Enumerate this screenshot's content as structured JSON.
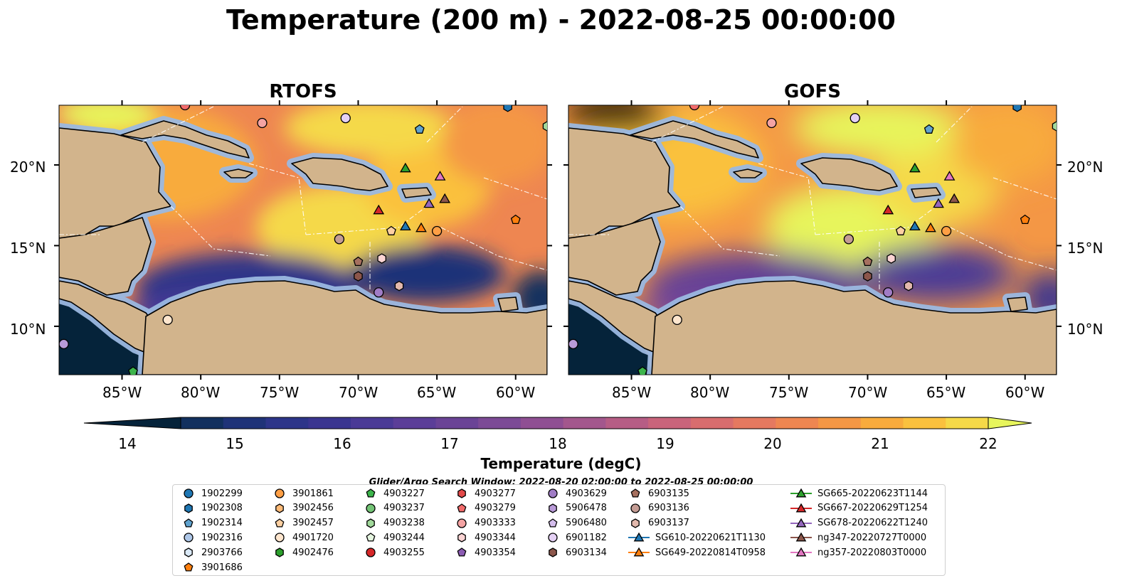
{
  "title": "Temperature (200 m) - 2022-08-25 00:00:00",
  "panels": [
    {
      "title": "RTOFS"
    },
    {
      "title": "GOFS"
    }
  ],
  "map_extent": {
    "lon_min": -89,
    "lon_max": -58,
    "lat_min": 7,
    "lat_max": 23.7
  },
  "lon_ticks": [
    "85°W",
    "80°W",
    "75°W",
    "70°W",
    "65°W",
    "60°W"
  ],
  "lat_ticks": [
    "20°N",
    "15°N",
    "10°N"
  ],
  "colorbar": {
    "label": "Temperature (degC)",
    "ticks": [
      "14",
      "15",
      "16",
      "17",
      "18",
      "19",
      "20",
      "21",
      "22"
    ],
    "vmin": 14,
    "vmax": 22,
    "extend": "both",
    "colors": [
      "#05233a",
      "#12305e",
      "#1f3378",
      "#2d3589",
      "#3a3590",
      "#4a3a96",
      "#5b3e98",
      "#6a4396",
      "#7c4a96",
      "#8f4f93",
      "#a3578d",
      "#b65d85",
      "#c9647b",
      "#d86d6e",
      "#e57960",
      "#ee8651",
      "#f49745",
      "#f8ab3c",
      "#fac13e",
      "#f5d948",
      "#e7f55c"
    ]
  },
  "search_window": "Glider/Argo Search Window: 2022-08-20 02:00:00 to 2022-08-25 00:00:00",
  "legend": {
    "columns": [
      [
        {
          "label": "1902299",
          "shape": "circle",
          "color": "#1f77b4"
        },
        {
          "label": "1902308",
          "shape": "hexagon",
          "color": "#1f77b4"
        },
        {
          "label": "1902314",
          "shape": "pentagon",
          "color": "#5fa2ce"
        },
        {
          "label": "1902316",
          "shape": "circle",
          "color": "#aec7e8"
        },
        {
          "label": "2903766",
          "shape": "hexagon",
          "color": "#dbeaf8"
        },
        {
          "label": "3901686",
          "shape": "pentagon",
          "color": "#ff7f0e"
        }
      ],
      [
        {
          "label": "3901861",
          "shape": "circle",
          "color": "#ff9f45"
        },
        {
          "label": "3902456",
          "shape": "hexagon",
          "color": "#ffbb78"
        },
        {
          "label": "3902457",
          "shape": "pentagon",
          "color": "#fdd0a2"
        },
        {
          "label": "4901720",
          "shape": "circle",
          "color": "#fee6ce"
        },
        {
          "label": "4902476",
          "shape": "hexagon",
          "color": "#2ca02c"
        }
      ],
      [
        {
          "label": "4903227",
          "shape": "pentagon",
          "color": "#3cb44b"
        },
        {
          "label": "4903237",
          "shape": "circle",
          "color": "#74c476"
        },
        {
          "label": "4903238",
          "shape": "hexagon",
          "color": "#a1d99b"
        },
        {
          "label": "4903244",
          "shape": "pentagon",
          "color": "#e5f5e0"
        },
        {
          "label": "4903255",
          "shape": "circle",
          "color": "#d62728"
        }
      ],
      [
        {
          "label": "4903277",
          "shape": "hexagon",
          "color": "#e34a4a"
        },
        {
          "label": "4903279",
          "shape": "pentagon",
          "color": "#f26b6b"
        },
        {
          "label": "4903333",
          "shape": "circle",
          "color": "#f4a3a3"
        },
        {
          "label": "4903344",
          "shape": "hexagon",
          "color": "#fbd4d4"
        },
        {
          "label": "4903354",
          "shape": "pentagon",
          "color": "#8c5cb3"
        }
      ],
      [
        {
          "label": "4903629",
          "shape": "circle",
          "color": "#a07cc5"
        },
        {
          "label": "5906478",
          "shape": "hexagon",
          "color": "#b99ad8"
        },
        {
          "label": "5906480",
          "shape": "pentagon",
          "color": "#d4bdec"
        },
        {
          "label": "6901182",
          "shape": "circle",
          "color": "#e5d1f5"
        },
        {
          "label": "6903134",
          "shape": "hexagon",
          "color": "#8c564b"
        }
      ],
      [
        {
          "label": "6903135",
          "shape": "pentagon",
          "color": "#a6705f"
        },
        {
          "label": "6903136",
          "shape": "circle",
          "color": "#c49c94"
        },
        {
          "label": "6903137",
          "shape": "hexagon",
          "color": "#e3b9ad"
        },
        {
          "label": "SG610-20220621T1130",
          "shape": "triangle",
          "color": "#1f77b4",
          "line": true
        },
        {
          "label": "SG649-20220814T0958",
          "shape": "triangle",
          "color": "#ff7f0e",
          "line": true
        }
      ],
      [
        {
          "label": "SG665-20220623T1144",
          "shape": "triangle",
          "color": "#2ca02c",
          "line": true
        },
        {
          "label": "SG667-20220629T1254",
          "shape": "triangle",
          "color": "#d62728",
          "line": true
        },
        {
          "label": "SG678-20220622T1240",
          "shape": "triangle",
          "color": "#9467bd",
          "line": true
        },
        {
          "label": "ng347-20220727T0000",
          "shape": "triangle",
          "color": "#8c564b",
          "line": true
        },
        {
          "label": "ng357-20220803T0000",
          "shape": "triangle",
          "color": "#e377c2",
          "line": true
        }
      ]
    ]
  },
  "markers": [
    {
      "lon": -76.1,
      "lat": 22.6,
      "shape": "circle",
      "color": "#f4a3a3"
    },
    {
      "lon": -70.8,
      "lat": 22.9,
      "shape": "circle",
      "color": "#e5d1f5"
    },
    {
      "lon": -66.1,
      "lat": 22.2,
      "shape": "pentagon",
      "color": "#5fa2ce"
    },
    {
      "lon": -60.5,
      "lat": 23.6,
      "shape": "hexagon",
      "color": "#1f77b4"
    },
    {
      "lon": -81.0,
      "lat": 23.7,
      "shape": "circle",
      "color": "#f26b6b"
    },
    {
      "lon": -58.0,
      "lat": 22.4,
      "shape": "hexagon",
      "color": "#a1d99b"
    },
    {
      "lon": -67.0,
      "lat": 19.8,
      "shape": "triangle",
      "color": "#2ca02c"
    },
    {
      "lon": -64.8,
      "lat": 19.3,
      "shape": "triangle",
      "color": "#e377c2"
    },
    {
      "lon": -65.5,
      "lat": 17.6,
      "shape": "triangle",
      "color": "#9467bd"
    },
    {
      "lon": -64.5,
      "lat": 17.9,
      "shape": "triangle",
      "color": "#8c564b"
    },
    {
      "lon": -68.7,
      "lat": 17.2,
      "shape": "triangle",
      "color": "#d62728"
    },
    {
      "lon": -67.0,
      "lat": 16.2,
      "shape": "triangle",
      "color": "#1f77b4"
    },
    {
      "lon": -66.0,
      "lat": 16.1,
      "shape": "triangle",
      "color": "#ff7f0e"
    },
    {
      "lon": -67.9,
      "lat": 15.9,
      "shape": "pentagon",
      "color": "#fdd0a2"
    },
    {
      "lon": -65.0,
      "lat": 15.9,
      "shape": "circle",
      "color": "#ff9f45"
    },
    {
      "lon": -71.2,
      "lat": 15.4,
      "shape": "circle",
      "color": "#c49c94"
    },
    {
      "lon": -60.0,
      "lat": 16.6,
      "shape": "pentagon",
      "color": "#ff7f0e"
    },
    {
      "lon": -70.0,
      "lat": 14.0,
      "shape": "pentagon",
      "color": "#a6705f"
    },
    {
      "lon": -68.5,
      "lat": 14.2,
      "shape": "hexagon",
      "color": "#fbd4d4"
    },
    {
      "lon": -70.0,
      "lat": 13.1,
      "shape": "hexagon",
      "color": "#8c564b"
    },
    {
      "lon": -68.7,
      "lat": 12.1,
      "shape": "circle",
      "color": "#a07cc5"
    },
    {
      "lon": -67.4,
      "lat": 12.5,
      "shape": "hexagon",
      "color": "#e3b9ad"
    },
    {
      "lon": -82.1,
      "lat": 10.4,
      "shape": "circle",
      "color": "#fee6ce"
    },
    {
      "lon": -88.7,
      "lat": 8.9,
      "shape": "circle",
      "color": "#b99ad8"
    },
    {
      "lon": -84.3,
      "lat": 7.2,
      "shape": "pentagon",
      "color": "#3cb44b"
    }
  ]
}
